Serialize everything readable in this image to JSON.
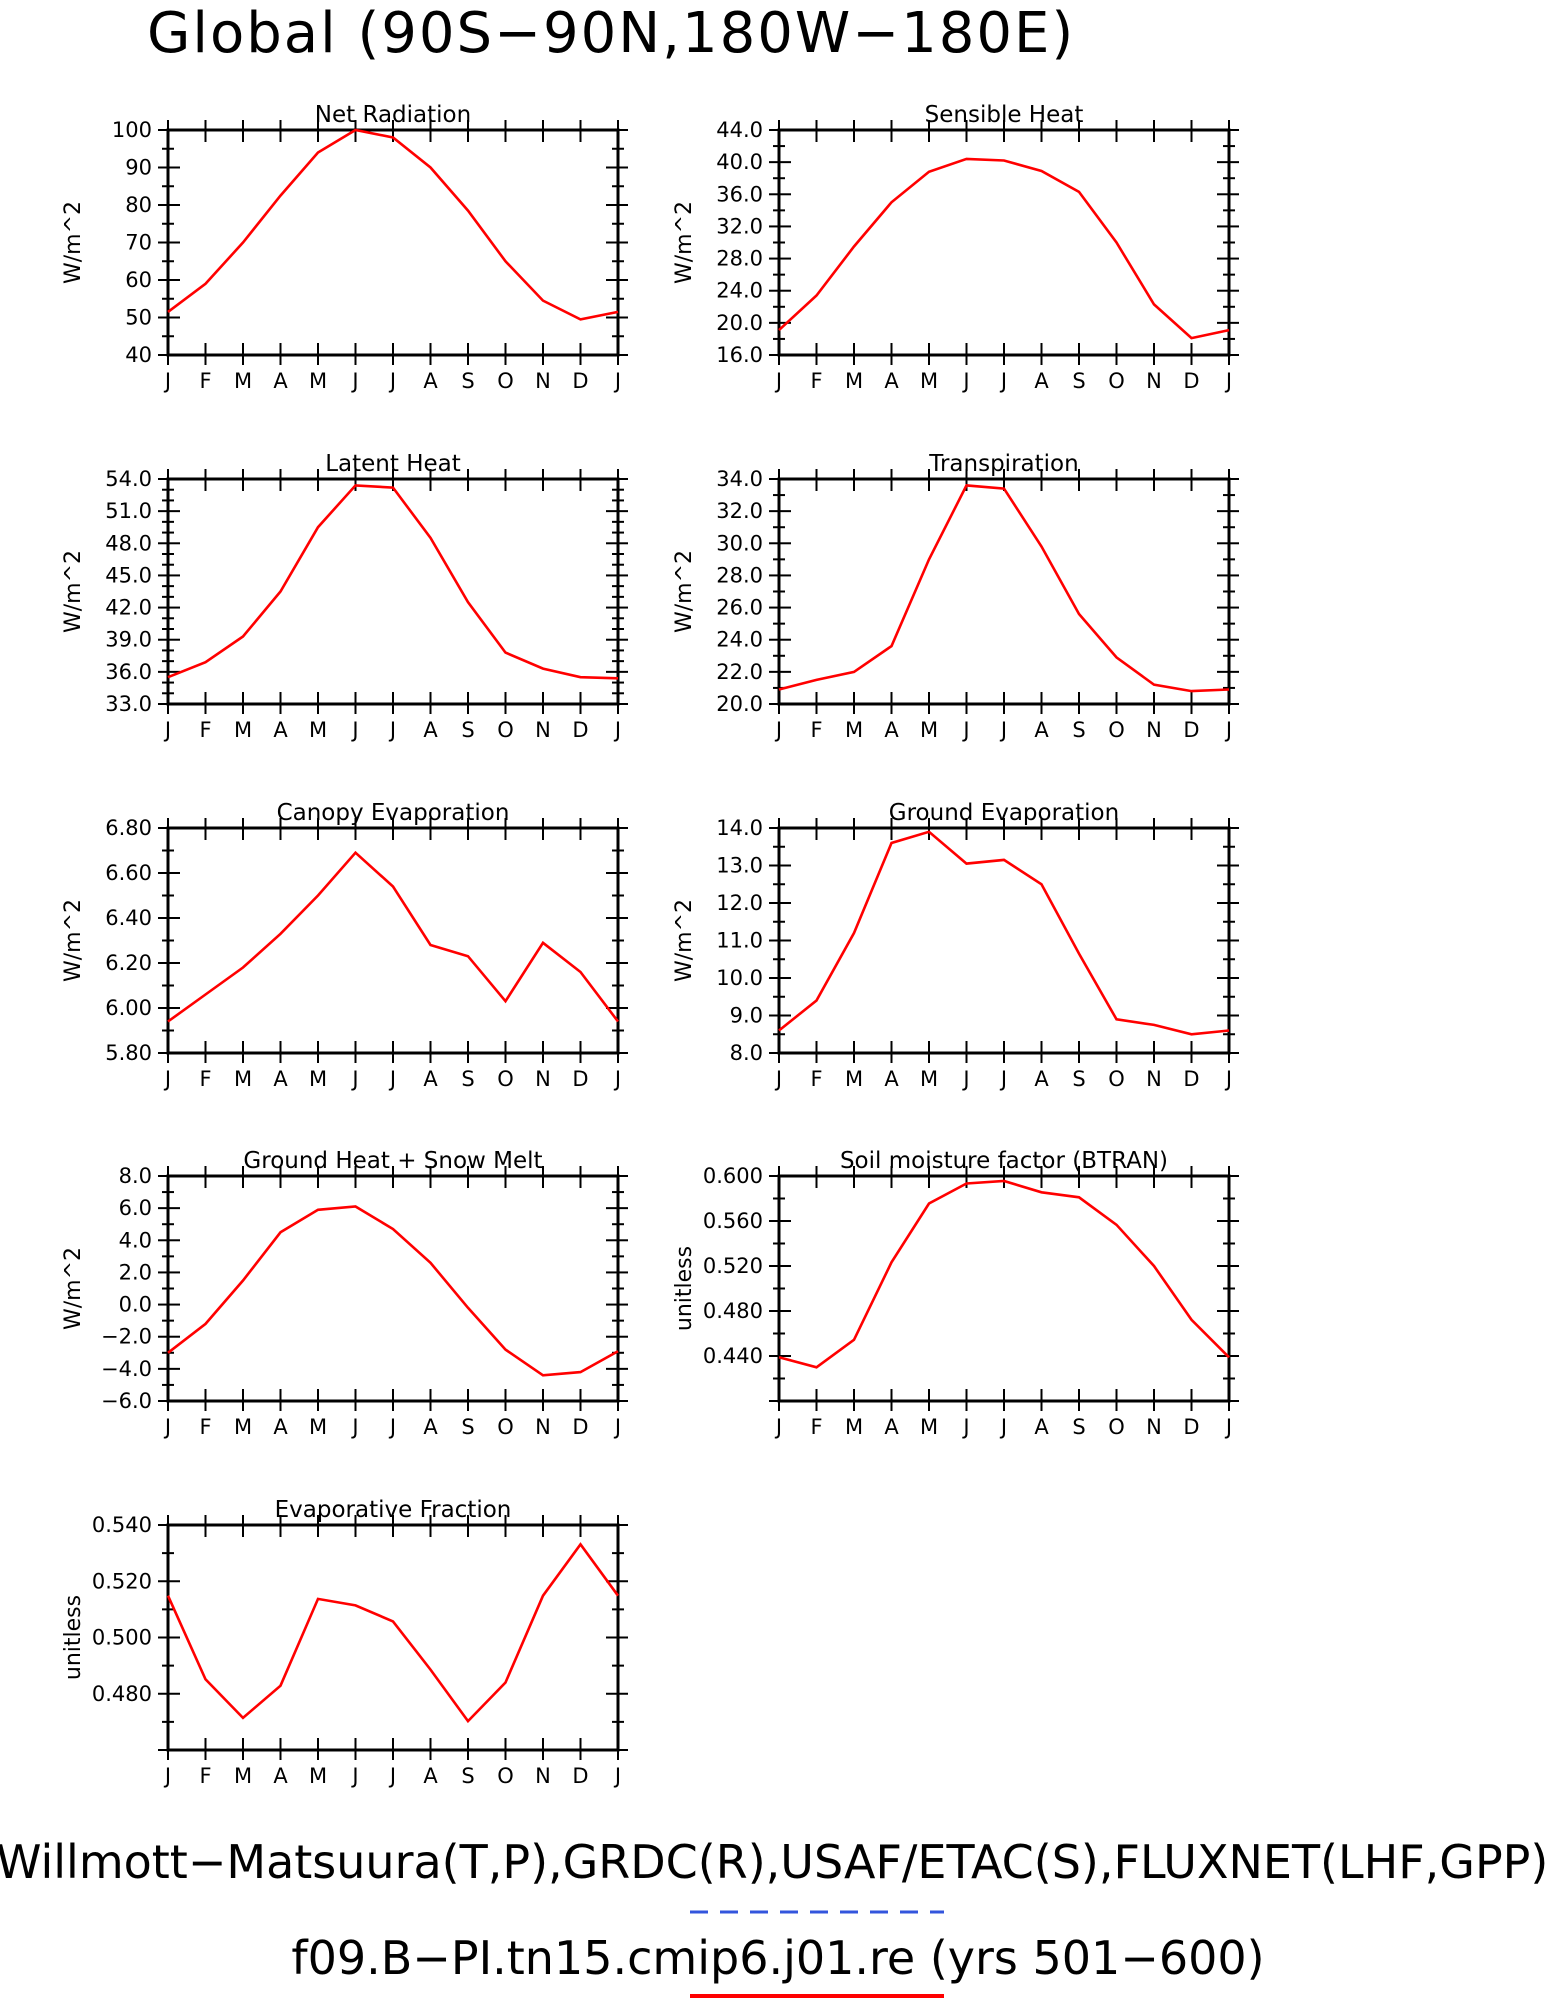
{
  "page": {
    "title": "Global (90S−90N,180W−180E)",
    "footer_line1": "Willmott−Matsuura(T,P),GRDC(R),USAF/ETAC(S),FLUXNET(LHF,GPP)",
    "footer_line2": "f09.B−PI.tn15.cmip6.j01.re (yrs 501−600)",
    "footer_line1_underline_color": "#3355dd",
    "footer_line2_underline_color": "#ff0000"
  },
  "chart_data": [
    {
      "type": "line",
      "title": "Net Radiation",
      "ylabel": "W/m^2",
      "categories": [
        "J",
        "F",
        "M",
        "A",
        "M",
        "J",
        "J",
        "A",
        "S",
        "O",
        "N",
        "D",
        "J"
      ],
      "ylim": [
        40,
        100
      ],
      "yticks": [
        "40",
        "50",
        "60",
        "70",
        "80",
        "90",
        "100"
      ],
      "yminor": 2,
      "series": [
        {
          "values": [
            51.5,
            59,
            70,
            82.5,
            94,
            100,
            98,
            90,
            78.5,
            65,
            54.5,
            49.5,
            51.5
          ],
          "color": "#ff0000"
        }
      ]
    },
    {
      "type": "line",
      "title": "Sensible Heat",
      "ylabel": "W/m^2",
      "categories": [
        "J",
        "F",
        "M",
        "A",
        "M",
        "J",
        "J",
        "A",
        "S",
        "O",
        "N",
        "D",
        "J"
      ],
      "ylim": [
        16,
        44
      ],
      "yticks": [
        "16.0",
        "20.0",
        "24.0",
        "28.0",
        "32.0",
        "36.0",
        "40.0",
        "44.0"
      ],
      "yminor": 2,
      "series": [
        {
          "values": [
            19.1,
            23.4,
            29.5,
            35,
            38.8,
            40.4,
            40.2,
            38.9,
            36.3,
            30,
            22.3,
            18.1,
            19.1
          ],
          "color": "#ff0000"
        }
      ]
    },
    {
      "type": "line",
      "title": "Latent Heat",
      "ylabel": "W/m^2",
      "categories": [
        "J",
        "F",
        "M",
        "A",
        "M",
        "J",
        "J",
        "A",
        "S",
        "O",
        "N",
        "D",
        "J"
      ],
      "ylim": [
        33,
        54
      ],
      "yticks": [
        "33.0",
        "36.0",
        "39.0",
        "42.0",
        "45.0",
        "48.0",
        "51.0",
        "54.0"
      ],
      "yminor": 3,
      "series": [
        {
          "values": [
            35.5,
            36.9,
            39.3,
            43.5,
            49.5,
            53.4,
            53.2,
            48.5,
            42.5,
            37.8,
            36.3,
            35.5,
            35.4
          ],
          "color": "#ff0000"
        }
      ]
    },
    {
      "type": "line",
      "title": "Transpiration",
      "ylabel": "W/m^2",
      "categories": [
        "J",
        "F",
        "M",
        "A",
        "M",
        "J",
        "J",
        "A",
        "S",
        "O",
        "N",
        "D",
        "J"
      ],
      "ylim": [
        20,
        34
      ],
      "yticks": [
        "20.0",
        "22.0",
        "24.0",
        "26.0",
        "28.0",
        "30.0",
        "32.0",
        "34.0"
      ],
      "yminor": 2,
      "series": [
        {
          "values": [
            20.9,
            21.5,
            22,
            23.6,
            29,
            33.6,
            33.4,
            29.8,
            25.6,
            22.9,
            21.2,
            20.8,
            20.9
          ],
          "color": "#ff0000"
        }
      ]
    },
    {
      "type": "line",
      "title": "Canopy Evaporation",
      "ylabel": "W/m^2",
      "categories": [
        "J",
        "F",
        "M",
        "A",
        "M",
        "J",
        "J",
        "A",
        "S",
        "O",
        "N",
        "D",
        "J"
      ],
      "ylim": [
        5.8,
        6.8
      ],
      "yticks": [
        "5.80",
        "6.00",
        "6.20",
        "6.40",
        "6.60",
        "6.80"
      ],
      "yminor": 2,
      "series": [
        {
          "values": [
            5.94,
            6.06,
            6.18,
            6.33,
            6.5,
            6.69,
            6.54,
            6.28,
            6.23,
            6.03,
            6.29,
            6.16,
            5.94
          ],
          "color": "#ff0000"
        }
      ]
    },
    {
      "type": "line",
      "title": "Ground Evaporation",
      "ylabel": "W/m^2",
      "categories": [
        "J",
        "F",
        "M",
        "A",
        "M",
        "J",
        "J",
        "A",
        "S",
        "O",
        "N",
        "D",
        "J"
      ],
      "ylim": [
        8,
        14
      ],
      "yticks": [
        "8.0",
        "9.0",
        "10.0",
        "11.0",
        "12.0",
        "13.0",
        "14.0"
      ],
      "yminor": 2,
      "series": [
        {
          "values": [
            8.6,
            9.4,
            11.2,
            13.6,
            13.9,
            13.05,
            13.15,
            12.5,
            10.65,
            8.9,
            8.75,
            8.5,
            8.6
          ],
          "color": "#ff0000"
        }
      ]
    },
    {
      "type": "line",
      "title": "Ground Heat + Snow Melt",
      "ylabel": "W/m^2",
      "categories": [
        "J",
        "F",
        "M",
        "A",
        "M",
        "J",
        "J",
        "A",
        "S",
        "O",
        "N",
        "D",
        "J"
      ],
      "ylim": [
        -6,
        8
      ],
      "yticks": [
        "−6.0",
        "−4.0",
        "−2.0",
        "0.0",
        "2.0",
        "4.0",
        "6.0",
        "8.0"
      ],
      "yminor": 2,
      "series": [
        {
          "values": [
            -3,
            -1.2,
            1.5,
            4.5,
            5.9,
            6.1,
            4.7,
            2.6,
            -0.2,
            -2.8,
            -4.4,
            -4.2,
            -2.9
          ],
          "color": "#ff0000"
        }
      ]
    },
    {
      "type": "line",
      "title": "Soil moisture factor (BTRAN)",
      "ylabel": "unitless",
      "categories": [
        "J",
        "F",
        "M",
        "A",
        "M",
        "J",
        "J",
        "A",
        "S",
        "O",
        "N",
        "D",
        "J"
      ],
      "ylim": [
        0.42,
        0.6
      ],
      "yticks": [
        "",
        "0.440",
        "0.480",
        "0.520",
        "0.560",
        "0.600"
      ],
      "yminor": 2,
      "series": [
        {
          "values": [
            0.455,
            0.447,
            0.469,
            0.531,
            0.578,
            0.594,
            0.596,
            0.587,
            0.583,
            0.561,
            0.528,
            0.485,
            0.455
          ],
          "color": "#ff0000"
        }
      ]
    },
    {
      "type": "line",
      "title": "Evaporative Fraction",
      "ylabel": "unitless",
      "categories": [
        "J",
        "F",
        "M",
        "A",
        "M",
        "J",
        "J",
        "A",
        "S",
        "O",
        "N",
        "D",
        "J"
      ],
      "ylim": [
        0.47,
        0.54
      ],
      "yticks": [
        "",
        "0.480",
        "0.500",
        "0.520",
        "0.540"
      ],
      "yminor": 2,
      "series": [
        {
          "values": [
            0.518,
            0.492,
            0.48,
            0.49,
            0.517,
            0.515,
            0.51,
            0.495,
            0.479,
            0.491,
            0.518,
            0.534,
            0.518
          ],
          "color": "#ff0000"
        }
      ]
    }
  ]
}
